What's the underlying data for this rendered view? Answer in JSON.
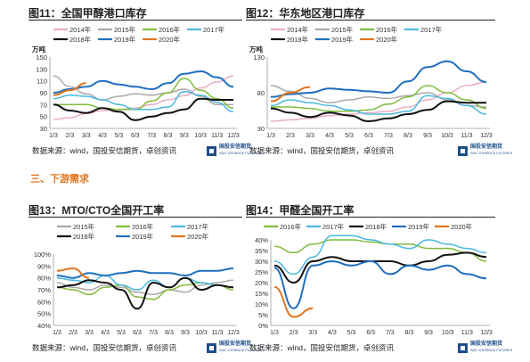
{
  "colors": {
    "2014": "#e8aebf",
    "2015": "#a9a9a9",
    "2016": "#7fbc3c",
    "2017": "#4ab9e0",
    "2018": "#111111",
    "2019": "#1e6fbf",
    "2020": "#e0751e"
  },
  "section_title": "三、下游需求",
  "charts": [
    {
      "id": "c1",
      "type": "line",
      "title": "图11：全国甲醇港口库存",
      "unit": "万吨",
      "ylim": [
        30,
        150
      ],
      "yticks": [
        30,
        50,
        70,
        90,
        110,
        130,
        150
      ],
      "x": [
        "1/3",
        "2/3",
        "3/3",
        "4/3",
        "5/3",
        "6/3",
        "7/3",
        "8/3",
        "9/3",
        "10/3",
        "11/3",
        "12/3"
      ],
      "legend": [
        [
          "2014年",
          "2015年",
          "2016年",
          "2017年"
        ],
        [
          "2018年",
          "2019年",
          "2020年"
        ]
      ],
      "series": [
        {
          "name": "2014年",
          "key": "2014",
          "values": [
            45,
            48,
            55,
            60,
            62,
            64,
            70,
            78,
            85,
            98,
            108,
            118
          ]
        },
        {
          "name": "2015年",
          "key": "2015",
          "values": [
            118,
            100,
            88,
            78,
            84,
            88,
            86,
            90,
            96,
            84,
            70,
            70
          ]
        },
        {
          "name": "2016年",
          "key": "2016",
          "values": [
            70,
            70,
            70,
            64,
            62,
            62,
            76,
            90,
            114,
            94,
            80,
            64
          ]
        },
        {
          "name": "2017年",
          "key": "2017",
          "values": [
            80,
            86,
            84,
            78,
            70,
            62,
            62,
            66,
            92,
            86,
            74,
            58
          ]
        },
        {
          "name": "2018年",
          "key": "2018",
          "values": [
            70,
            60,
            56,
            64,
            58,
            44,
            50,
            56,
            62,
            80,
            78,
            78
          ]
        },
        {
          "name": "2019年",
          "key": "2019",
          "values": [
            90,
            96,
            100,
            110,
            104,
            100,
            96,
            106,
            122,
            126,
            116,
            100
          ]
        },
        {
          "name": "2020年",
          "key": "2020",
          "values": [
            86,
            94,
            106,
            null,
            null,
            null,
            null,
            null,
            null,
            null,
            null,
            null
          ]
        }
      ],
      "source": "数据来源：wind，国投安信期货，卓创资讯"
    },
    {
      "id": "c2",
      "type": "line",
      "title": "图12：华东地区港口库存",
      "unit": "万吨",
      "ylim": [
        30,
        130
      ],
      "yticks": [
        30,
        80,
        130
      ],
      "x": [
        "1/3",
        "2/3",
        "3/3",
        "4/3",
        "5/3",
        "6/3",
        "7/3",
        "8/3",
        "9/3",
        "10/3",
        "11/3",
        "12/3"
      ],
      "legend": [
        [
          "2014年",
          "2015年",
          "2016年",
          "2017年"
        ],
        [
          "2018年",
          "2019年",
          "2020年"
        ]
      ],
      "series": [
        {
          "name": "2014年",
          "key": "2014",
          "values": [
            40,
            42,
            44,
            48,
            50,
            52,
            54,
            60,
            70,
            80,
            90,
            95
          ]
        },
        {
          "name": "2015年",
          "key": "2015",
          "values": [
            90,
            82,
            72,
            66,
            70,
            74,
            72,
            76,
            80,
            70,
            62,
            60
          ]
        },
        {
          "name": "2016年",
          "key": "2016",
          "values": [
            60,
            60,
            58,
            54,
            54,
            56,
            64,
            74,
            90,
            80,
            70,
            58
          ]
        },
        {
          "name": "2017年",
          "key": "2017",
          "values": [
            62,
            70,
            66,
            62,
            56,
            50,
            50,
            54,
            76,
            72,
            62,
            50
          ]
        },
        {
          "name": "2018年",
          "key": "2018",
          "values": [
            58,
            52,
            46,
            52,
            48,
            40,
            44,
            50,
            56,
            68,
            66,
            66
          ]
        },
        {
          "name": "2019年",
          "key": "2019",
          "values": [
            74,
            78,
            80,
            86,
            84,
            82,
            80,
            96,
            116,
            124,
            110,
            95
          ]
        },
        {
          "name": "2020年",
          "key": "2020",
          "values": [
            68,
            80,
            88,
            null,
            null,
            null,
            null,
            null,
            null,
            null,
            null,
            null
          ]
        }
      ],
      "source": "数据来源：wind，国投安信期货，卓创资讯"
    },
    {
      "id": "c3",
      "type": "line",
      "title": "图13：MTO/CTO全国开工率",
      "unit": "",
      "ylim": [
        40,
        100
      ],
      "yticks": [
        "40%",
        "50%",
        "60%",
        "70%",
        "80%",
        "90%",
        "100%"
      ],
      "ytickvals": [
        40,
        50,
        60,
        70,
        80,
        90,
        100
      ],
      "x": [
        "1/3",
        "2/3",
        "3/3",
        "4/3",
        "5/3",
        "6/3",
        "7/3",
        "8/3",
        "9/3",
        "10/3",
        "11/3",
        "12/3"
      ],
      "legend": [
        [
          "2015年",
          "2016年",
          "2017年"
        ],
        [
          "2018年",
          "2019年",
          "2020年"
        ]
      ],
      "series": [
        {
          "name": "2015年",
          "key": "2015",
          "values": [
            76,
            72,
            70,
            74,
            72,
            68,
            66,
            70,
            68,
            74,
            76,
            78
          ]
        },
        {
          "name": "2016年",
          "key": "2016",
          "values": [
            72,
            70,
            66,
            72,
            74,
            64,
            62,
            70,
            74,
            76,
            74,
            70
          ]
        },
        {
          "name": "2017年",
          "key": "2017",
          "values": [
            80,
            78,
            76,
            82,
            74,
            70,
            78,
            72,
            80,
            76,
            74,
            72
          ]
        },
        {
          "name": "2018年",
          "key": "2018",
          "values": [
            72,
            74,
            78,
            76,
            70,
            54,
            76,
            72,
            80,
            70,
            74,
            72
          ]
        },
        {
          "name": "2019年",
          "key": "2019",
          "values": [
            82,
            80,
            84,
            82,
            84,
            86,
            84,
            84,
            82,
            86,
            86,
            88
          ]
        },
        {
          "name": "2020年",
          "key": "2020",
          "values": [
            86,
            88,
            80,
            null,
            null,
            null,
            null,
            null,
            null,
            null,
            null,
            null
          ]
        }
      ],
      "source": "数据来源：wind，国投安信期货，卓创资讯"
    },
    {
      "id": "c4",
      "type": "line",
      "title": "图14：甲醛全国开工率",
      "unit": "",
      "ylim": [
        0,
        40
      ],
      "yticks": [
        "0%",
        "5%",
        "10%",
        "15%",
        "20%",
        "25%",
        "30%",
        "35%",
        "40%"
      ],
      "ytickvals": [
        0,
        5,
        10,
        15,
        20,
        25,
        30,
        35,
        40
      ],
      "x": [
        "1/3",
        "2/3",
        "3/3",
        "4/3",
        "5/3",
        "6/3",
        "7/3",
        "8/3",
        "9/3",
        "10/3",
        "11/3",
        "12/3"
      ],
      "legend": [
        [
          "2016年",
          "2017年",
          "2018年",
          "2019年",
          "2020年"
        ]
      ],
      "series": [
        {
          "name": "2016年",
          "key": "2016",
          "values": [
            37,
            34,
            38,
            40,
            40,
            39,
            38,
            38,
            36,
            36,
            34,
            30
          ]
        },
        {
          "name": "2017年",
          "key": "2017",
          "values": [
            30,
            24,
            32,
            42,
            42,
            40,
            38,
            36,
            40,
            38,
            36,
            34
          ]
        },
        {
          "name": "2018年",
          "key": "2018",
          "values": [
            28,
            20,
            30,
            32,
            30,
            30,
            30,
            28,
            30,
            33,
            34,
            32
          ]
        },
        {
          "name": "2019年",
          "key": "2019",
          "values": [
            27,
            8,
            28,
            30,
            28,
            30,
            24,
            28,
            26,
            28,
            24,
            22
          ]
        },
        {
          "name": "2020年",
          "key": "2020",
          "values": [
            18,
            4,
            8,
            null,
            null,
            null,
            null,
            null,
            null,
            null,
            null,
            null
          ]
        }
      ],
      "source": "数据来源：wind，国投安信期货，卓创资讯"
    }
  ],
  "logo": {
    "cn": "国投安信期货",
    "en": "SDIC ESSENCE FUTURES"
  }
}
